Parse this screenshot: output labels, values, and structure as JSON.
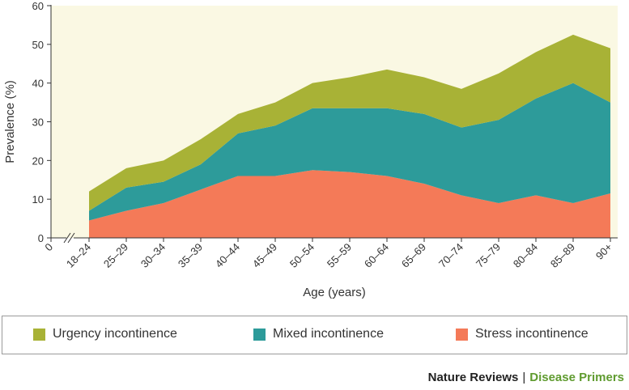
{
  "colors": {
    "background": "#faf8e3",
    "urgency": "#a8b236",
    "mixed": "#2d9b9a",
    "stress": "#f47a58"
  },
  "chart_data": {
    "type": "area",
    "stacked": true,
    "x_origin_label": "0",
    "categories": [
      "18–24",
      "25–29",
      "30–34",
      "35–39",
      "40–44",
      "45–49",
      "50–54",
      "55–59",
      "60–64",
      "65–69",
      "70–74",
      "75–79",
      "80–84",
      "85–89",
      "90+"
    ],
    "series": [
      {
        "name": "Stress incontinence",
        "color_key": "stress",
        "values": [
          4.5,
          7,
          9,
          12.5,
          16,
          16,
          17.5,
          17,
          16,
          14,
          11,
          9,
          11,
          9,
          11.5
        ]
      },
      {
        "name": "Mixed incontinence",
        "color_key": "mixed",
        "values": [
          2.5,
          6,
          5.5,
          6.5,
          11,
          13,
          16,
          16.5,
          17.5,
          18,
          17.5,
          21.5,
          25,
          31,
          23.5
        ]
      },
      {
        "name": "Urgency incontinence",
        "color_key": "urgency",
        "values": [
          5,
          5,
          5.5,
          6.5,
          5,
          6,
          6.5,
          8,
          10,
          9.5,
          10,
          12,
          12,
          12.5,
          14
        ]
      }
    ],
    "ylabel": "Prevalence (%)",
    "xlabel": "Age (years)",
    "ylim": [
      0,
      60
    ],
    "yticks": [
      0,
      10,
      20,
      30,
      40,
      50,
      60
    ],
    "grid": false,
    "axis_break": true,
    "legend_position": "bottom"
  },
  "legend": {
    "items": [
      {
        "label": "Urgency incontinence",
        "color_key": "urgency"
      },
      {
        "label": "Mixed incontinence",
        "color_key": "mixed"
      },
      {
        "label": "Stress incontinence",
        "color_key": "stress"
      }
    ]
  },
  "credit": {
    "publisher": "Nature Reviews",
    "separator": "|",
    "series": "Disease Primers"
  }
}
